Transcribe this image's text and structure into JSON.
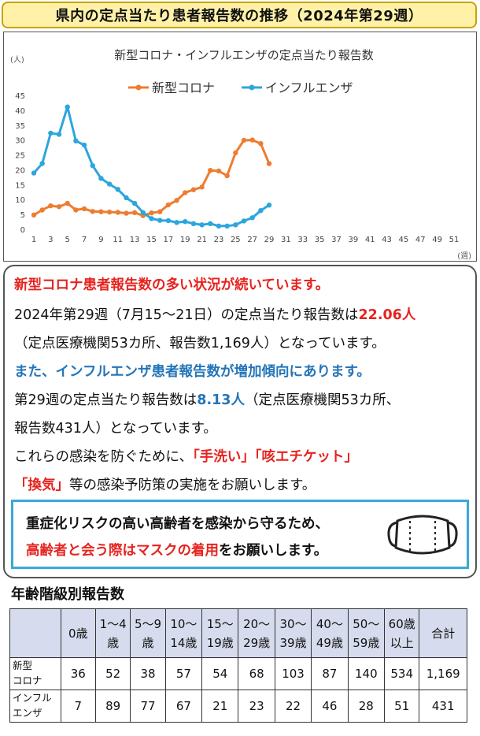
{
  "page": {
    "title": "県内の定点当たり患者報告数の推移（2024年第29週）"
  },
  "chart_data": {
    "type": "line",
    "title": "新型コロナ・インフルエンザの定点当たり報告数",
    "ylabel": "(人)",
    "xlabel": "(週)",
    "ylim": [
      0,
      45
    ],
    "yticks": [
      0,
      5,
      10,
      15,
      20,
      25,
      30,
      35,
      40,
      45
    ],
    "xlim": [
      1,
      51
    ],
    "xticks": [
      1,
      3,
      5,
      7,
      9,
      11,
      13,
      15,
      17,
      19,
      21,
      23,
      25,
      27,
      29,
      31,
      33,
      35,
      37,
      39,
      41,
      43,
      45,
      47,
      49,
      51
    ],
    "legend_position": "top-center",
    "grid": false,
    "series": [
      {
        "name": "新型コロナ",
        "color": "#ed7d31",
        "x": [
          1,
          2,
          3,
          4,
          5,
          6,
          7,
          8,
          9,
          10,
          11,
          12,
          13,
          14,
          15,
          16,
          17,
          18,
          19,
          20,
          21,
          22,
          23,
          24,
          25,
          26,
          27,
          28,
          29
        ],
        "values": [
          4.8,
          6.5,
          7.9,
          7.6,
          8.7,
          6.5,
          6.9,
          6.0,
          5.9,
          5.8,
          5.7,
          5.4,
          5.6,
          4.6,
          5.5,
          5.9,
          8.2,
          9.7,
          12.3,
          13.3,
          14.2,
          19.8,
          19.6,
          18.0,
          25.7,
          29.9,
          30.0,
          28.8,
          22.06
        ]
      },
      {
        "name": "インフルエンザ",
        "color": "#2ca6dc",
        "x": [
          1,
          2,
          3,
          4,
          5,
          6,
          7,
          8,
          9,
          10,
          11,
          12,
          13,
          14,
          15,
          16,
          17,
          18,
          19,
          20,
          21,
          22,
          23,
          24,
          25,
          26,
          27,
          28,
          29
        ],
        "values": [
          18.9,
          22.1,
          32.3,
          31.9,
          41.1,
          29.7,
          28.3,
          21.4,
          17.1,
          15.2,
          13.4,
          10.6,
          8.7,
          5.6,
          3.6,
          3.0,
          2.9,
          2.3,
          2.6,
          1.9,
          1.5,
          1.9,
          1.1,
          1.1,
          1.5,
          2.8,
          3.9,
          6.3,
          8.13
        ]
      }
    ]
  },
  "info": {
    "headline1": "新型コロナ患者報告数の多い状況が続いています。",
    "p1_a": "2024年第29週（7月15〜21日）の定点当たり報告数は",
    "p1_value": "22.06人",
    "p1_b": "（定点医療機関53カ所、報告数1,169人）となっています。",
    "headline2": "また、インフルエンザ患者報告数が増加傾向にあります。",
    "p2_a": "第29週の定点当たり報告数は",
    "p2_value": "8.13人",
    "p2_b": "（定点医療機関53カ所、",
    "p2_c": "報告数431人）となっています。",
    "p3_a": "これらの感染を防ぐために、",
    "p3_k1": "「手洗い」",
    "p3_k2": "「咳エチケット」",
    "p3_k3": "「換気」",
    "p3_b": "等の感染予防策の実施をお願いします。",
    "mask_line1": "重症化リスクの高い高齢者を感染から守るため、",
    "mask_line2_red": "高齢者と会う際はマスクの着用",
    "mask_line2_rest": "をお願いします。",
    "mask_icon": "face-mask-icon"
  },
  "age_table": {
    "title": "年齢階級別報告数",
    "headers": [
      [
        "",
        ""
      ],
      [
        "0歳",
        ""
      ],
      [
        "1〜4",
        "歳"
      ],
      [
        "5〜9",
        "歳"
      ],
      [
        "10〜",
        "14歳"
      ],
      [
        "15〜",
        "19歳"
      ],
      [
        "20〜",
        "29歳"
      ],
      [
        "30〜",
        "39歳"
      ],
      [
        "40〜",
        "49歳"
      ],
      [
        "50〜",
        "59歳"
      ],
      [
        "60歳",
        "以上"
      ],
      [
        "合計",
        ""
      ]
    ],
    "rows": [
      {
        "label": [
          "新型",
          "コロナ"
        ],
        "values": [
          "36",
          "52",
          "38",
          "57",
          "54",
          "68",
          "103",
          "87",
          "140",
          "534",
          "1,169"
        ]
      },
      {
        "label": [
          "インフル",
          "エンザ"
        ],
        "values": [
          "7",
          "89",
          "77",
          "67",
          "21",
          "23",
          "22",
          "46",
          "28",
          "51",
          "431"
        ]
      }
    ]
  }
}
